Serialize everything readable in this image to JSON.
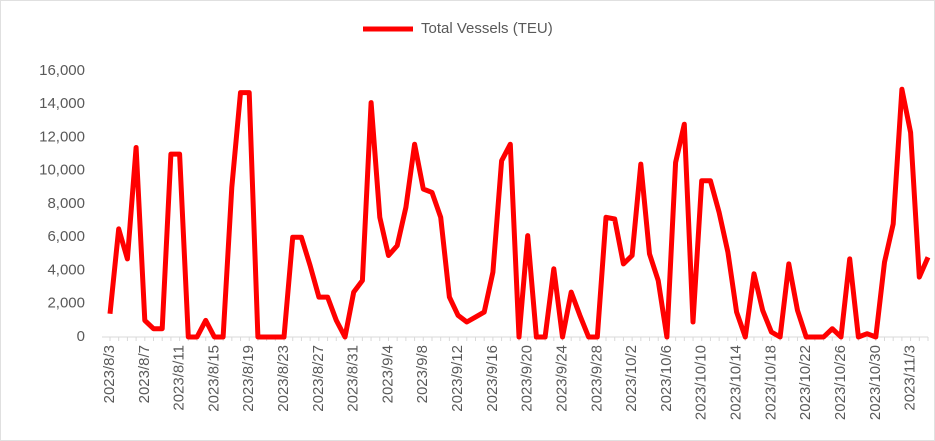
{
  "chart_data": {
    "type": "line",
    "categories": [
      "2023/8/3",
      null,
      null,
      null,
      "2023/8/7",
      null,
      null,
      null,
      "2023/8/11",
      null,
      null,
      null,
      "2023/8/15",
      null,
      null,
      null,
      "2023/8/19",
      null,
      null,
      null,
      "2023/8/23",
      null,
      null,
      null,
      "2023/8/27",
      null,
      null,
      null,
      "2023/8/31",
      null,
      null,
      null,
      "2023/9/4",
      null,
      null,
      null,
      "2023/9/8",
      null,
      null,
      null,
      "2023/9/12",
      null,
      null,
      null,
      "2023/9/16",
      null,
      null,
      null,
      "2023/9/20",
      null,
      null,
      null,
      "2023/9/24",
      null,
      null,
      null,
      "2023/9/28",
      null,
      null,
      null,
      "2023/10/2",
      null,
      null,
      null,
      "2023/10/6",
      null,
      null,
      null,
      "2023/10/10",
      null,
      null,
      null,
      "2023/10/14",
      null,
      null,
      null,
      "2023/10/18",
      null,
      null,
      null,
      "2023/10/22",
      null,
      null,
      null,
      "2023/10/26",
      null,
      null,
      null,
      "2023/10/30",
      null,
      null,
      null,
      "2023/11/3",
      null,
      null
    ],
    "series": [
      {
        "name": "Total Vessels (TEU)",
        "color": "#ff0000",
        "values": [
          1400,
          6500,
          4700,
          11400,
          1000,
          500,
          500,
          11000,
          11000,
          0,
          0,
          1000,
          0,
          0,
          9000,
          14700,
          14700,
          0,
          0,
          0,
          0,
          6000,
          6000,
          4300,
          2400,
          2400,
          1000,
          0,
          2700,
          3400,
          14100,
          7200,
          4900,
          5500,
          7800,
          11600,
          8900,
          8700,
          7200,
          2400,
          1300,
          900,
          1200,
          1500,
          3900,
          10600,
          11600,
          0,
          6100,
          0,
          0,
          4100,
          0,
          2700,
          1300,
          0,
          0,
          7200,
          7100,
          4400,
          4900,
          10400,
          5000,
          3400,
          0,
          10500,
          12800,
          900,
          9400,
          9400,
          7500,
          5100,
          1500,
          0,
          3800,
          1600,
          300,
          0,
          4400,
          1600,
          0,
          0,
          0,
          500,
          0,
          4700,
          0,
          200,
          0,
          4500,
          6800,
          14900,
          12300,
          3600,
          4800
        ]
      }
    ],
    "ylim": [
      0,
      16000
    ],
    "yticks": [
      0,
      {
        "value": 2000,
        "label": "2,000"
      },
      {
        "value": 4000,
        "label": "4,000"
      },
      {
        "value": 6000,
        "label": "6,000"
      },
      {
        "value": 8000,
        "label": "8,000"
      },
      {
        "value": 10000,
        "label": "10,000"
      },
      {
        "value": 12000,
        "label": "12,000"
      },
      {
        "value": 14000,
        "label": "14,000"
      },
      {
        "value": 16000,
        "label": "16,000"
      }
    ],
    "grid": false,
    "legend": "top"
  }
}
